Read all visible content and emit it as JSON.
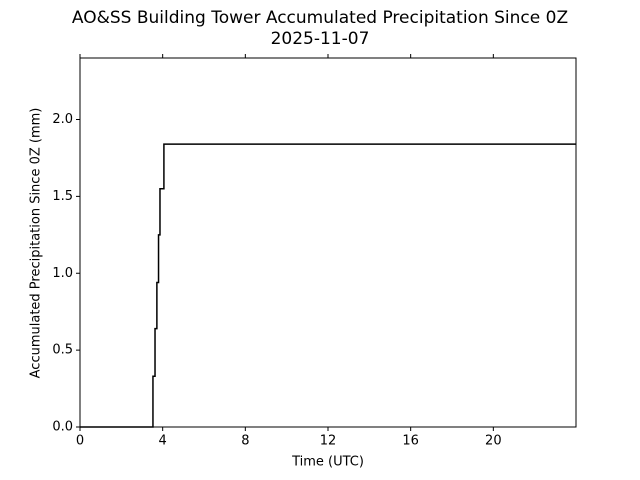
{
  "chart_data": {
    "type": "line",
    "title": "AO&SS Building Tower Accumulated Precipitation Since 0Z",
    "subtitle": "2025-11-07",
    "x_label": "Time (UTC)",
    "y_label": "Accumulated Precipitation Since 0Z (mm)",
    "x": [
      0,
      3.53,
      3.53,
      3.63,
      3.63,
      3.72,
      3.72,
      3.8,
      3.8,
      3.87,
      3.87,
      4.06,
      4.06,
      24
    ],
    "series": [
      {
        "color": "#000000",
        "values": [
          0,
          0,
          0.33,
          0.33,
          0.64,
          0.64,
          0.94,
          0.94,
          1.25,
          1.25,
          1.55,
          1.55,
          1.84,
          1.84
        ]
      }
    ],
    "xlim": [
      0,
      24
    ],
    "xticks": [
      0,
      4,
      8,
      12,
      16,
      20
    ],
    "ylim": [
      0,
      2.4
    ],
    "yticks": [
      {
        "value": 0,
        "label": "0.0"
      },
      0.5,
      {
        "value": 1,
        "label": "1.0"
      },
      1.5,
      {
        "value": 2,
        "label": "2.0"
      }
    ],
    "grid": false
  }
}
